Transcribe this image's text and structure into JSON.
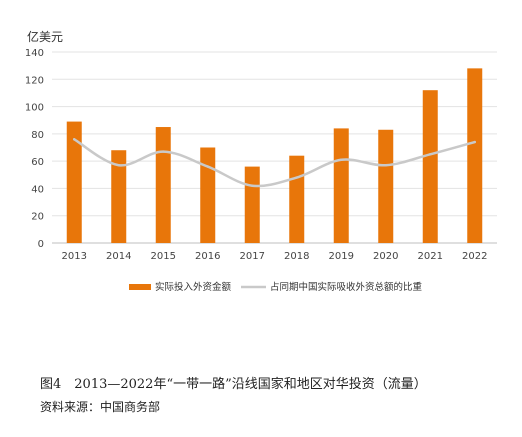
{
  "chart_data": {
    "type": "bar",
    "unit": "亿美元",
    "categories": [
      "2013",
      "2014",
      "2015",
      "2016",
      "2017",
      "2018",
      "2019",
      "2020",
      "2021",
      "2022"
    ],
    "series": [
      {
        "name": "实际投入外资金额",
        "type": "bar",
        "color": "#E8760A",
        "values": [
          89,
          68,
          85,
          70,
          56,
          64,
          84,
          83,
          112,
          128
        ]
      },
      {
        "name": "占同期中国实际吸收外资总额的比重",
        "type": "line",
        "color": "#C9C9C9",
        "values": [
          76,
          57,
          67,
          56,
          42,
          48,
          61,
          57,
          65,
          74
        ]
      }
    ],
    "y_ticks": [
      0,
      20,
      40,
      60,
      80,
      100,
      120,
      140
    ],
    "ylim": [
      0,
      140
    ],
    "grid": true,
    "legend_position": "bottom"
  },
  "caption": {
    "figure": "图4　2013—2022年“一带一路”沿线国家和地区对华投资（流量）",
    "source": "资料来源：中国商务部"
  }
}
